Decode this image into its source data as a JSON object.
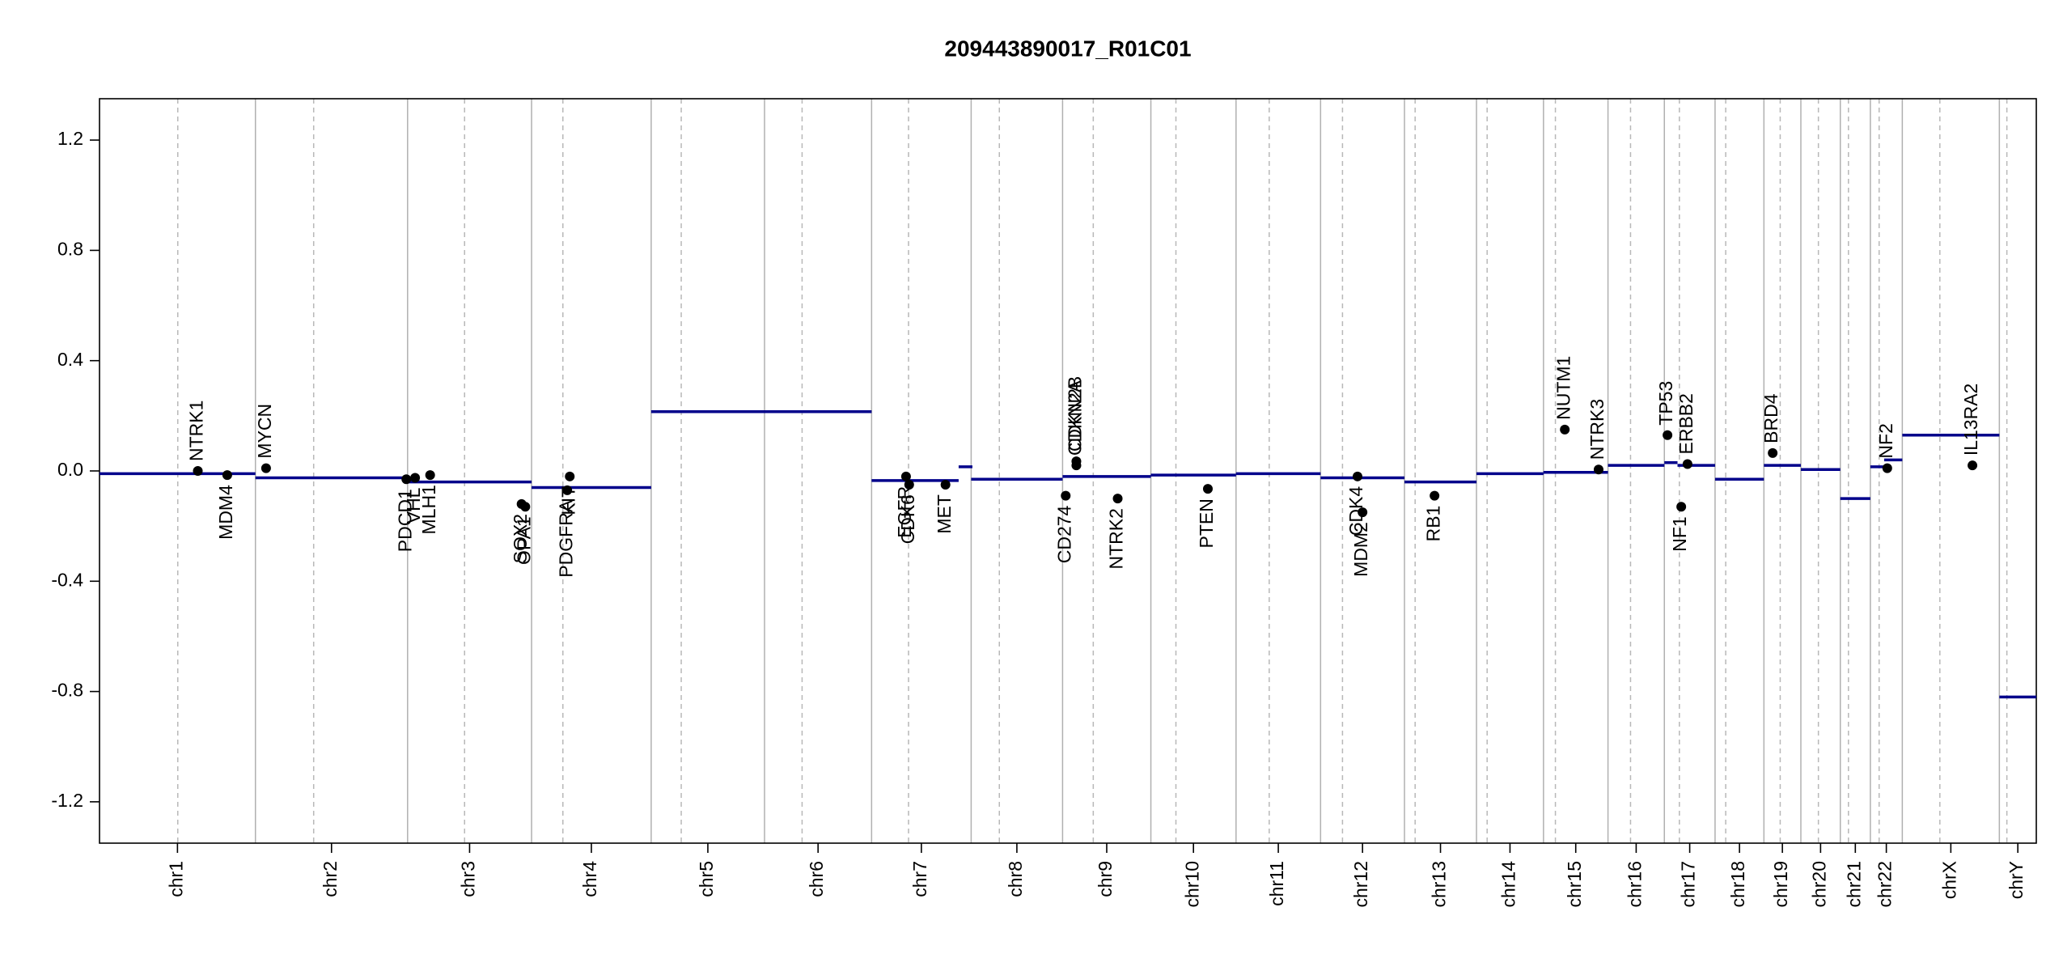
{
  "chart_data": {
    "type": "cnv",
    "title": "209443890017_R01C01",
    "xlim": [
      0,
      3093
    ],
    "ylim": [
      -1.35,
      1.35
    ],
    "yticks": [
      {
        "value": 1.2,
        "label": "1.2"
      },
      {
        "value": 0.8,
        "label": "0.8"
      },
      {
        "value": 0.4,
        "label": "0.4"
      },
      {
        "value": 0,
        "label": "0.0"
      },
      {
        "value": -0.4,
        "label": "-0.4"
      },
      {
        "value": -0.8,
        "label": "-0.8"
      },
      {
        "value": -1.2,
        "label": "-1.2"
      }
    ],
    "chromosomes": [
      "chr1",
      "chr2",
      "chr3",
      "chr4",
      "chr5",
      "chr6",
      "chr7",
      "chr8",
      "chr9",
      "chr10",
      "chr11",
      "chr12",
      "chr13",
      "chr14",
      "chr15",
      "chr16",
      "chr17",
      "chr18",
      "chr19",
      "chr20",
      "chr21",
      "chr22",
      "chrX",
      "chrY"
    ],
    "chromosome_starts": [
      0,
      249,
      492,
      690,
      881,
      1062,
      1233,
      1392,
      1538,
      1679,
      1815,
      1950,
      2084,
      2199,
      2306,
      2409,
      2499,
      2580,
      2658,
      2717,
      2780,
      2828,
      2879,
      3034
    ],
    "chromosome_ends": [
      249,
      492,
      690,
      881,
      1062,
      1233,
      1392,
      1538,
      1679,
      1815,
      1950,
      2084,
      2199,
      2306,
      2409,
      2499,
      2580,
      2658,
      2717,
      2780,
      2828,
      2879,
      3034,
      3093
    ],
    "centromeres": [
      125,
      342,
      583,
      740,
      929,
      1122,
      1292,
      1437,
      1587,
      1719,
      1868,
      1985,
      2101,
      2216,
      2325,
      2445,
      2523,
      2597,
      2684,
      2745,
      2793,
      2842,
      2939,
      3046
    ],
    "segment_color": "#00008b",
    "segments": {
      "starts": [
        0,
        249,
        492,
        690,
        881,
        1233,
        1372,
        1392,
        1538,
        1679,
        1815,
        1950,
        2084,
        2199,
        2306,
        2409,
        2499,
        2520,
        2580,
        2658,
        2717,
        2780,
        2828,
        2850,
        2879,
        3034
      ],
      "ends": [
        249,
        492,
        690,
        881,
        1233,
        1372,
        1394,
        1538,
        1679,
        1815,
        1950,
        2084,
        2199,
        2306,
        2409,
        2499,
        2520,
        2580,
        2658,
        2717,
        2780,
        2828,
        2850,
        2879,
        3034,
        3093
      ],
      "values": [
        -0.01,
        -0.025,
        -0.04,
        -0.06,
        0.215,
        -0.035,
        0.015,
        -0.03,
        -0.02,
        -0.015,
        -0.01,
        -0.025,
        -0.04,
        -0.01,
        -0.005,
        0.02,
        0.03,
        0.02,
        -0.03,
        0.02,
        0.005,
        -0.1,
        0.015,
        0.04,
        0.13,
        -0.82
      ]
    },
    "gene_color": "#000000",
    "genes": {
      "names": [
        "NTRK1",
        "MDM4",
        "MYCN",
        "PDCD1",
        "VHL",
        "MLH1",
        "SOX2",
        "OPA1",
        "PDGFRA",
        "KIT",
        "EGFR",
        "CDK6",
        "MET",
        "CD274",
        "CDKN2A",
        "CDKN2B",
        "NTRK2",
        "PTEN",
        "CDK4",
        "MDM2",
        "RB1",
        "NUTM1",
        "NTRK3",
        "TP53",
        "ERBB2",
        "NF1",
        "BRD4",
        "NF2",
        "IL13RA2"
      ],
      "x": [
        157,
        204,
        266,
        490,
        504,
        528,
        674,
        680,
        747,
        751,
        1288,
        1293,
        1351,
        1543,
        1560,
        1560,
        1626,
        1770,
        2009,
        2017,
        2132,
        2340,
        2394,
        2504,
        2536,
        2526,
        2672,
        2855,
        2991
      ],
      "values": [
        0.0,
        -0.015,
        0.01,
        -0.03,
        -0.025,
        -0.015,
        -0.12,
        -0.13,
        -0.07,
        -0.02,
        -0.02,
        -0.05,
        -0.05,
        -0.09,
        0.02,
        0.035,
        -0.1,
        -0.065,
        -0.02,
        -0.15,
        -0.09,
        0.15,
        0.005,
        0.13,
        0.025,
        -0.13,
        0.065,
        0.01,
        0.02
      ]
    }
  }
}
